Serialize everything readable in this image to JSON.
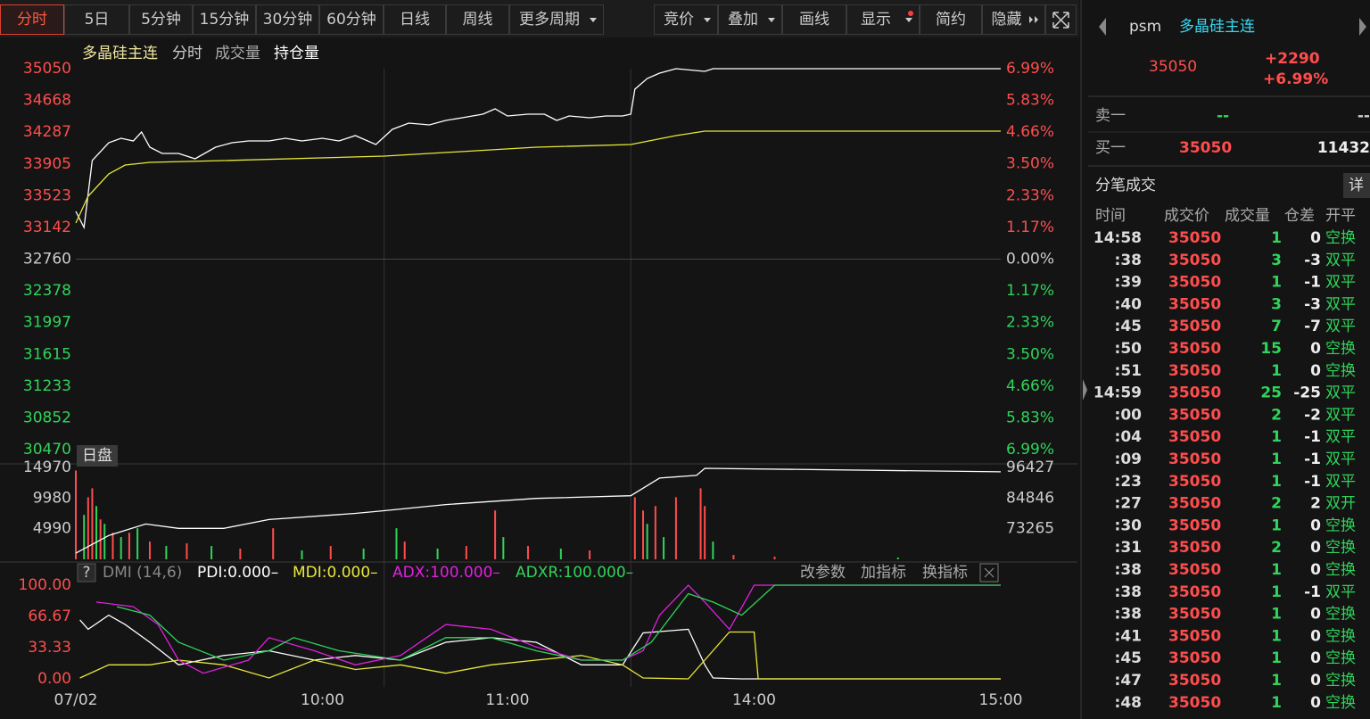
{
  "toolbar": {
    "periods": [
      "分时",
      "5日",
      "5分钟",
      "15分钟",
      "30分钟",
      "60分钟",
      "日线",
      "周线",
      "更多周期"
    ],
    "tools": [
      "竞价",
      "叠加",
      "画线",
      "显示",
      "简约",
      "隐藏"
    ]
  },
  "price_chart": {
    "type": "line",
    "legend": [
      "多晶硅主连",
      "分时",
      "成交量",
      "持仓量"
    ],
    "session_label": "日盘",
    "xlim": [
      0,
      225
    ],
    "xticks": [
      {
        "value": 0,
        "label": "07/02"
      },
      {
        "value": 60,
        "label": "10:00"
      },
      {
        "value": 105,
        "label": "11:00"
      },
      {
        "value": 165,
        "label": "14:00"
      },
      {
        "value": 225,
        "label": "15:00"
      }
    ],
    "xgrid": [
      75,
      135
    ],
    "ylim": [
      30470,
      35050
    ],
    "yticks": [
      35050,
      34668,
      34287,
      33905,
      33523,
      33142,
      32760,
      32378,
      31997,
      31615,
      31233,
      30852,
      30470
    ],
    "y2lim": [
      -6.99,
      6.99
    ],
    "y2ticks": [
      {
        "value": 6.99,
        "label": "6.99%"
      },
      {
        "value": 5.83,
        "label": "5.83%"
      },
      {
        "value": 4.66,
        "label": "4.66%"
      },
      {
        "value": 3.5,
        "label": "3.50%"
      },
      {
        "value": 2.33,
        "label": "2.33%"
      },
      {
        "value": 1.17,
        "label": "1.17%"
      },
      {
        "value": 0,
        "label": "0.00%"
      },
      {
        "value": -1.17,
        "label": "1.17%"
      },
      {
        "value": -2.33,
        "label": "2.33%"
      },
      {
        "value": -3.5,
        "label": "3.50%"
      },
      {
        "value": -4.66,
        "label": "4.66%"
      },
      {
        "value": -5.83,
        "label": "5.83%"
      },
      {
        "value": -6.99,
        "label": "6.99%"
      }
    ],
    "series": [
      {
        "color": "#ffffff",
        "x": [
          0,
          2,
          4,
          8,
          11,
          14,
          16,
          18,
          21,
          25,
          29,
          34,
          38,
          42,
          47,
          51,
          55,
          60,
          64,
          68,
          73,
          77,
          81,
          86,
          90,
          94,
          99,
          102,
          105,
          110,
          114,
          117,
          120,
          125,
          129,
          133,
          135,
          136,
          139,
          142,
          146,
          153,
          155,
          225
        ],
        "values": [
          33334,
          33141,
          33946,
          34160,
          34213,
          34181,
          34288,
          34106,
          34031,
          34031,
          33967,
          34106,
          34160,
          34181,
          34181,
          34213,
          34181,
          34213,
          34181,
          34246,
          34138,
          34321,
          34396,
          34374,
          34428,
          34460,
          34503,
          34567,
          34482,
          34503,
          34503,
          34428,
          34482,
          34460,
          34482,
          34482,
          34503,
          34803,
          34932,
          34996,
          35050,
          35018,
          35050,
          35050
        ]
      },
      {
        "color": "#e8e83a",
        "x": [
          0,
          3,
          8,
          12,
          18,
          36,
          75,
          112,
          135,
          146,
          153,
          225
        ],
        "values": [
          33194,
          33516,
          33784,
          33892,
          33924,
          33945,
          33999,
          34106,
          34138,
          34246,
          34299,
          34299
        ]
      }
    ]
  },
  "volume_chart": {
    "type": "bar",
    "ylim": [
      0,
      14970
    ],
    "yticks": [
      4990,
      9980,
      14970
    ],
    "y2lim": [
      61684,
      96427
    ],
    "y2ticks": [
      73265,
      84846,
      96427
    ],
    "bars": {
      "x": [
        0,
        2,
        3,
        4,
        5,
        6,
        7,
        9,
        11,
        13,
        15,
        18,
        22,
        27,
        33,
        40,
        48,
        55,
        62,
        70,
        78,
        80,
        88,
        95,
        102,
        104,
        110,
        118,
        125,
        136,
        138,
        139,
        141,
        143,
        146,
        152,
        153,
        155,
        160,
        170,
        200
      ],
      "values": [
        14460,
        7230,
        10120,
        11570,
        8680,
        6510,
        5780,
        4340,
        3620,
        4340,
        5060,
        2890,
        2170,
        2600,
        2170,
        1740,
        5060,
        1450,
        2170,
        1740,
        5060,
        2890,
        1740,
        2170,
        7950,
        3620,
        2170,
        1740,
        1450,
        10120,
        7950,
        5780,
        8680,
        3620,
        10120,
        11570,
        8680,
        2890,
        720,
        430,
        290
      ],
      "colors": [
        "#ff4d4d",
        "#2fd45a",
        "#ff4d4d",
        "#ff4d4d",
        "#2fd45a",
        "#ff4d4d",
        "#2fd45a",
        "#ff4d4d",
        "#2fd45a",
        "#ff4d4d",
        "#2fd45a",
        "#ff4d4d",
        "#2fd45a",
        "#ff4d4d",
        "#2fd45a",
        "#ff4d4d",
        "#ff4d4d",
        "#2fd45a",
        "#ff4d4d",
        "#2fd45a",
        "#2fd45a",
        "#ff4d4d",
        "#2fd45a",
        "#ff4d4d",
        "#ff4d4d",
        "#2fd45a",
        "#ff4d4d",
        "#2fd45a",
        "#ff4d4d",
        "#ff4d4d",
        "#ff4d4d",
        "#2fd45a",
        "#ff4d4d",
        "#2fd45a",
        "#ff4d4d",
        "#ff4d4d",
        "#ff4d4d",
        "#2fd45a",
        "#ff4d4d",
        "#ff4d4d",
        "#2fd45a"
      ]
    },
    "holding": {
      "color": "#ffffff",
      "x": [
        0,
        8,
        17,
        25,
        36,
        47,
        68,
        75,
        90,
        112,
        135,
        142,
        151,
        153,
        225
      ],
      "values": [
        64023,
        70705,
        75048,
        73377,
        73377,
        76719,
        79057,
        80060,
        82398,
        84737,
        85739,
        92421,
        93423,
        96096,
        94760
      ]
    }
  },
  "dmi_chart": {
    "type": "line",
    "title": "DMI (14,6)",
    "buttons": [
      "改参数",
      "加指标",
      "换指标"
    ],
    "ylim": [
      0,
      100
    ],
    "yticks": [
      {
        "value": 100,
        "label": "100.00"
      },
      66.67,
      33.33,
      {
        "value": 0,
        "label": "0.00"
      }
    ],
    "series": [
      {
        "label": "PDI:0.000–",
        "color": "#ffffff",
        "x": [
          1,
          3,
          8,
          12,
          18,
          25,
          36,
          47,
          58,
          68,
          79,
          90,
          101,
          112,
          123,
          133,
          138,
          149,
          153,
          155,
          162,
          225
        ],
        "values": [
          63,
          53,
          68,
          58,
          39,
          15,
          25,
          30,
          20,
          25,
          20,
          39,
          44,
          39,
          15,
          15,
          49,
          53,
          15,
          1,
          0,
          0
        ]
      },
      {
        "label": "MDI:0.000–",
        "color": "#e8e83a",
        "x": [
          1,
          8,
          18,
          25,
          36,
          47,
          58,
          68,
          79,
          90,
          101,
          112,
          123,
          133,
          138,
          149,
          159,
          165,
          166,
          225
        ],
        "values": [
          1,
          15,
          15,
          20,
          15,
          1,
          20,
          10,
          15,
          6,
          15,
          20,
          25,
          15,
          1,
          0,
          50,
          50,
          0,
          0
        ]
      },
      {
        "label": "ADX:100.000–",
        "color": "#e020e0",
        "x": [
          5,
          14,
          20,
          25,
          31,
          42,
          47,
          58,
          68,
          79,
          90,
          101,
          112,
          123,
          133,
          138,
          142,
          149,
          153,
          159,
          165,
          225
        ],
        "values": [
          82,
          77,
          58,
          20,
          6,
          20,
          44,
          30,
          15,
          25,
          58,
          53,
          34,
          20,
          20,
          30,
          68,
          100,
          82,
          53,
          100,
          100
        ]
      },
      {
        "label": "ADXR:100.000–",
        "color": "#2fd45a",
        "x": [
          10,
          18,
          25,
          36,
          47,
          53,
          64,
          79,
          90,
          101,
          112,
          123,
          133,
          140,
          149,
          155,
          162,
          170,
          225
        ],
        "values": [
          77,
          68,
          39,
          20,
          30,
          44,
          30,
          20,
          44,
          44,
          30,
          20,
          20,
          39,
          91,
          82,
          68,
          100,
          100
        ]
      }
    ]
  },
  "quote": {
    "code": "psm",
    "name": "多晶硅主连",
    "price": 35050,
    "change": "+2290",
    "change_pct": "+6.99%",
    "ask": {
      "label": "卖一",
      "price": "--",
      "volume": "--"
    },
    "bid": {
      "label": "买一",
      "price": 35050,
      "volume": 11432
    }
  },
  "trades": {
    "title": "分笔成交",
    "detail": "详",
    "headers": [
      "时间",
      "成交价",
      "成交量",
      "仓差",
      "开平"
    ],
    "rows": [
      [
        "14:58",
        35050,
        1,
        0,
        "空换"
      ],
      [
        ":38",
        35050,
        3,
        -3,
        "双平"
      ],
      [
        ":39",
        35050,
        1,
        -1,
        "双平"
      ],
      [
        ":40",
        35050,
        3,
        -3,
        "双平"
      ],
      [
        ":45",
        35050,
        7,
        -7,
        "双平"
      ],
      [
        ":50",
        35050,
        15,
        0,
        "空换"
      ],
      [
        ":51",
        35050,
        1,
        0,
        "空换"
      ],
      [
        "14:59",
        35050,
        25,
        -25,
        "双平"
      ],
      [
        ":00",
        35050,
        2,
        -2,
        "双平"
      ],
      [
        ":04",
        35050,
        1,
        -1,
        "双平"
      ],
      [
        ":09",
        35050,
        1,
        -1,
        "双平"
      ],
      [
        ":23",
        35050,
        1,
        -1,
        "双平"
      ],
      [
        ":27",
        35050,
        2,
        2,
        "双开"
      ],
      [
        ":30",
        35050,
        1,
        0,
        "空换"
      ],
      [
        ":31",
        35050,
        2,
        0,
        "空换"
      ],
      [
        ":38",
        35050,
        1,
        0,
        "空换"
      ],
      [
        ":38",
        35050,
        1,
        -1,
        "双平"
      ],
      [
        ":38",
        35050,
        1,
        0,
        "空换"
      ],
      [
        ":41",
        35050,
        1,
        0,
        "空换"
      ],
      [
        ":45",
        35050,
        1,
        0,
        "空换"
      ],
      [
        ":47",
        35050,
        1,
        0,
        "空换"
      ],
      [
        ":48",
        35050,
        1,
        0,
        "空换"
      ]
    ]
  }
}
